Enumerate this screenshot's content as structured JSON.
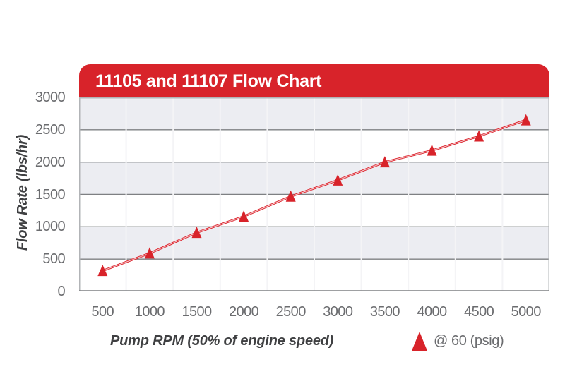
{
  "title": "11105 and 11107 Flow Chart",
  "chart_data": {
    "type": "line",
    "title": "11105 and 11107 Flow Chart",
    "x": [
      500,
      1000,
      1500,
      2000,
      2500,
      3000,
      3500,
      4000,
      4500,
      5000
    ],
    "x_tick_labels": [
      "500",
      "1000",
      "1500",
      "2000",
      "2500",
      "3000",
      "3500",
      "4000",
      "4500",
      "5000"
    ],
    "series": [
      {
        "name": "@ 60 (psig)",
        "marker": "triangle-up",
        "color": "#d8232a",
        "values": [
          320,
          590,
          910,
          1160,
          1470,
          1720,
          2000,
          2180,
          2400,
          2650
        ]
      }
    ],
    "xlabel": "Pump RPM (50% of engine speed)",
    "ylabel": "Flow Rate (lbs/hr)",
    "ylim": [
      0,
      3000
    ],
    "y_ticks": [
      0,
      500,
      1000,
      1500,
      2000,
      2500,
      3000
    ],
    "grid": "horizontal gridlines every 500 with alternating gray/white bands; faint vertical category separators",
    "legend": {
      "label": "@ 60 (psig)",
      "position": "bottom-right",
      "marker": "triangle-up"
    }
  },
  "colors": {
    "banner_red": "#d8232a",
    "series_red": "#dc2730",
    "band_gray": "#ecedf2",
    "gridline_gray": "#7e8083",
    "frame_gray": "#b2b4b7",
    "vertical_grid": "#f4f4f6",
    "tick_text": "#6b6c6f",
    "axis_title_text": "#3f4042",
    "title_text": "#ffffff"
  }
}
